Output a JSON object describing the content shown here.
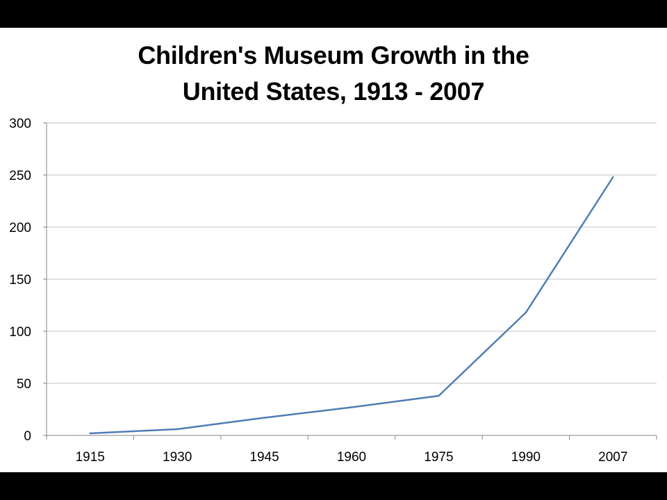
{
  "chart_data": {
    "type": "line",
    "title_lines": [
      "Children's Museum Growth in the",
      "United States, 1913 - 2007"
    ],
    "categories": [
      "1915",
      "1930",
      "1945",
      "1960",
      "1975",
      "1990",
      "2007"
    ],
    "series": [
      {
        "values": [
          2,
          6,
          17,
          27,
          38,
          118,
          248
        ]
      }
    ],
    "y_ticks": [
      "0",
      "50",
      "100",
      "150",
      "200",
      "250",
      "300"
    ],
    "ylim": [
      0,
      300
    ],
    "grid": true,
    "legend": "none",
    "colors": {
      "line": "#4F7DB3",
      "grid": "#C0C0C0",
      "axis": "#868686"
    }
  }
}
